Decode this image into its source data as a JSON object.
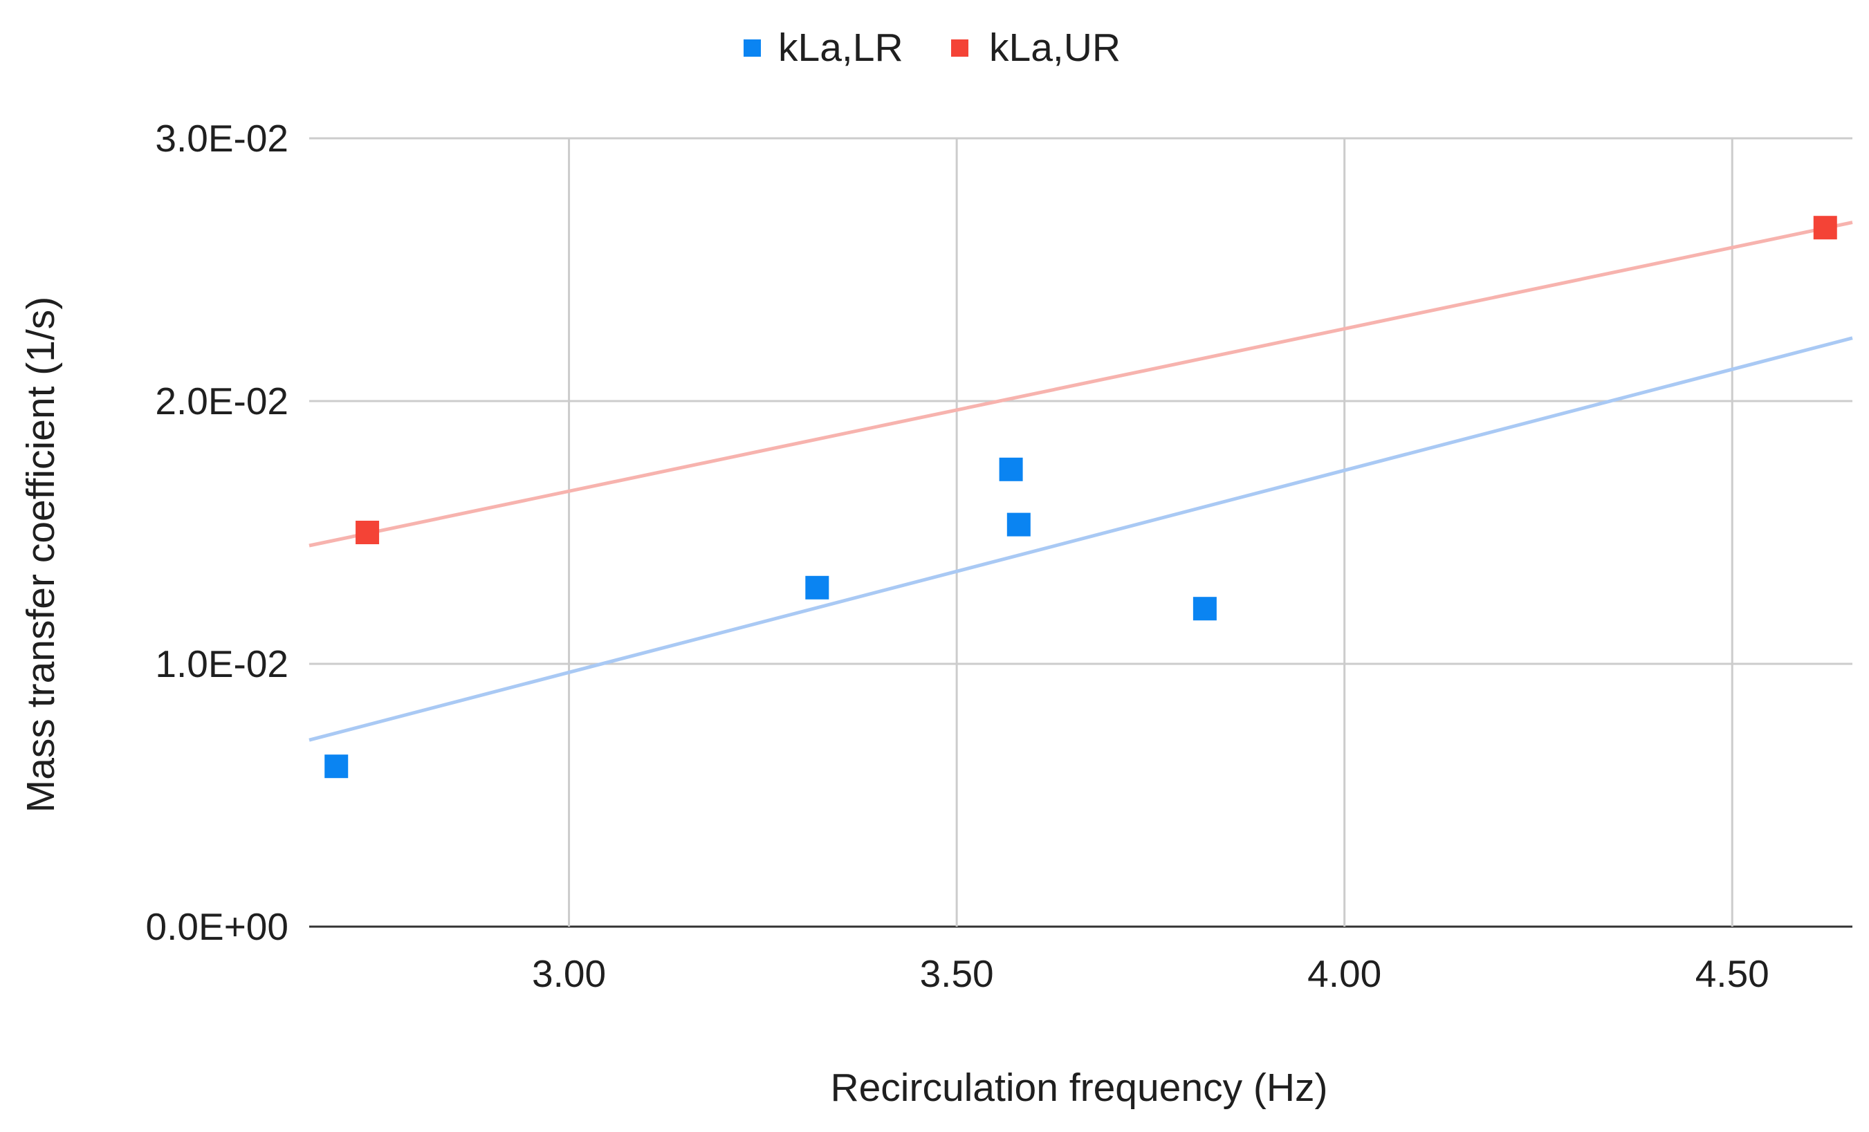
{
  "chart_data": {
    "type": "scatter",
    "title": "",
    "xlabel": "Recirculation frequency (Hz)",
    "ylabel": "Mass transfer coefficient (1/s)",
    "xlim": [
      2.665,
      4.655
    ],
    "ylim": [
      0,
      0.03
    ],
    "x_ticks": [
      3.0,
      3.5,
      4.0,
      4.5
    ],
    "x_tick_labels": [
      "3.00",
      "3.50",
      "4.00",
      "4.50"
    ],
    "y_ticks": [
      0,
      0.01,
      0.02,
      0.03
    ],
    "y_tick_labels": [
      "0.0E+00",
      "1.0E-02",
      "2.0E-02",
      "3.0E-02"
    ],
    "grid": true,
    "legend_position": "top-center",
    "series": [
      {
        "name": "kLa,LR",
        "color": "#0a84f2",
        "trend_color": "#a9c9f4",
        "marker": "square",
        "x": [
          2.7,
          3.32,
          3.57,
          3.58,
          3.82
        ],
        "y": [
          0.0061,
          0.0129,
          0.0174,
          0.0153,
          0.0121
        ],
        "trendline": {
          "type": "linear",
          "x": [
            2.665,
            4.655
          ],
          "y": [
            0.0071,
            0.0224
          ]
        }
      },
      {
        "name": "kLa,UR",
        "color": "#f44336",
        "trend_color": "#f7b3ae",
        "marker": "square",
        "x": [
          2.74,
          4.62
        ],
        "y": [
          0.015,
          0.0266
        ],
        "trendline": {
          "type": "linear",
          "x": [
            2.665,
            4.655
          ],
          "y": [
            0.0145,
            0.0268
          ]
        }
      }
    ]
  }
}
